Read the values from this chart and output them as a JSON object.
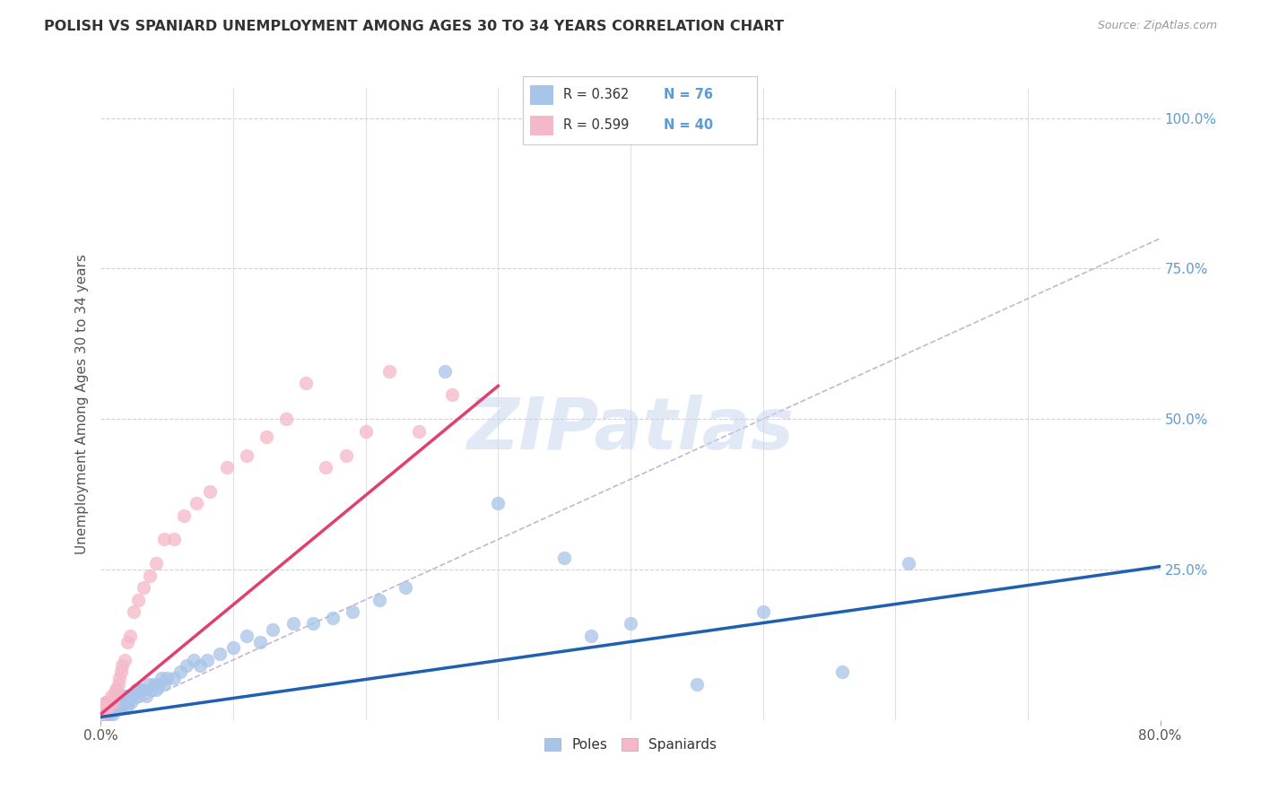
{
  "title": "POLISH VS SPANIARD UNEMPLOYMENT AMONG AGES 30 TO 34 YEARS CORRELATION CHART",
  "source": "Source: ZipAtlas.com",
  "ylabel": "Unemployment Among Ages 30 to 34 years",
  "xlim": [
    0,
    0.8
  ],
  "ylim": [
    0,
    1.05
  ],
  "poles_color": "#a8c4e8",
  "spaniards_color": "#f5b8c8",
  "poles_line_color": "#2060b0",
  "spaniards_line_color": "#e04070",
  "diagonal_color": "#c0b8d0",
  "background_color": "#ffffff",
  "grid_color": "#d0d0e0",
  "poles_r": "0.362",
  "poles_n": "76",
  "spaniards_r": "0.599",
  "spaniards_n": "40",
  "poles_line": [
    0.0,
    0.005,
    0.8,
    0.255
  ],
  "spaniards_line": [
    0.0,
    0.01,
    0.3,
    0.555
  ],
  "poles_x": [
    0.001,
    0.002,
    0.002,
    0.003,
    0.003,
    0.004,
    0.004,
    0.004,
    0.005,
    0.005,
    0.005,
    0.006,
    0.006,
    0.007,
    0.007,
    0.008,
    0.008,
    0.009,
    0.009,
    0.01,
    0.01,
    0.011,
    0.012,
    0.012,
    0.013,
    0.014,
    0.015,
    0.015,
    0.016,
    0.017,
    0.018,
    0.019,
    0.02,
    0.021,
    0.022,
    0.023,
    0.025,
    0.027,
    0.028,
    0.03,
    0.032,
    0.034,
    0.036,
    0.038,
    0.04,
    0.042,
    0.044,
    0.046,
    0.048,
    0.05,
    0.055,
    0.06,
    0.065,
    0.07,
    0.075,
    0.08,
    0.09,
    0.1,
    0.11,
    0.12,
    0.13,
    0.145,
    0.16,
    0.175,
    0.19,
    0.21,
    0.23,
    0.26,
    0.3,
    0.35,
    0.37,
    0.4,
    0.45,
    0.5,
    0.56,
    0.61
  ],
  "poles_y": [
    0.01,
    0.02,
    0.01,
    0.02,
    0.01,
    0.02,
    0.03,
    0.01,
    0.02,
    0.03,
    0.01,
    0.02,
    0.03,
    0.02,
    0.01,
    0.02,
    0.03,
    0.02,
    0.01,
    0.02,
    0.03,
    0.02,
    0.03,
    0.02,
    0.03,
    0.02,
    0.03,
    0.02,
    0.03,
    0.04,
    0.03,
    0.02,
    0.04,
    0.03,
    0.04,
    0.03,
    0.04,
    0.05,
    0.04,
    0.05,
    0.05,
    0.04,
    0.06,
    0.05,
    0.06,
    0.05,
    0.06,
    0.07,
    0.06,
    0.07,
    0.07,
    0.08,
    0.09,
    0.1,
    0.09,
    0.1,
    0.11,
    0.12,
    0.14,
    0.13,
    0.15,
    0.16,
    0.16,
    0.17,
    0.18,
    0.2,
    0.22,
    0.58,
    0.36,
    0.27,
    0.14,
    0.16,
    0.06,
    0.18,
    0.08,
    0.26
  ],
  "spaniards_x": [
    0.001,
    0.002,
    0.003,
    0.004,
    0.005,
    0.006,
    0.007,
    0.008,
    0.009,
    0.01,
    0.011,
    0.012,
    0.013,
    0.014,
    0.015,
    0.016,
    0.018,
    0.02,
    0.022,
    0.025,
    0.028,
    0.032,
    0.037,
    0.042,
    0.048,
    0.055,
    0.063,
    0.072,
    0.082,
    0.095,
    0.11,
    0.125,
    0.14,
    0.155,
    0.17,
    0.185,
    0.2,
    0.218,
    0.24,
    0.265
  ],
  "spaniards_y": [
    0.01,
    0.02,
    0.02,
    0.03,
    0.02,
    0.03,
    0.03,
    0.04,
    0.03,
    0.04,
    0.05,
    0.05,
    0.06,
    0.07,
    0.08,
    0.09,
    0.1,
    0.13,
    0.14,
    0.18,
    0.2,
    0.22,
    0.24,
    0.26,
    0.3,
    0.3,
    0.34,
    0.36,
    0.38,
    0.42,
    0.44,
    0.47,
    0.5,
    0.56,
    0.42,
    0.44,
    0.48,
    0.58,
    0.48,
    0.54
  ]
}
